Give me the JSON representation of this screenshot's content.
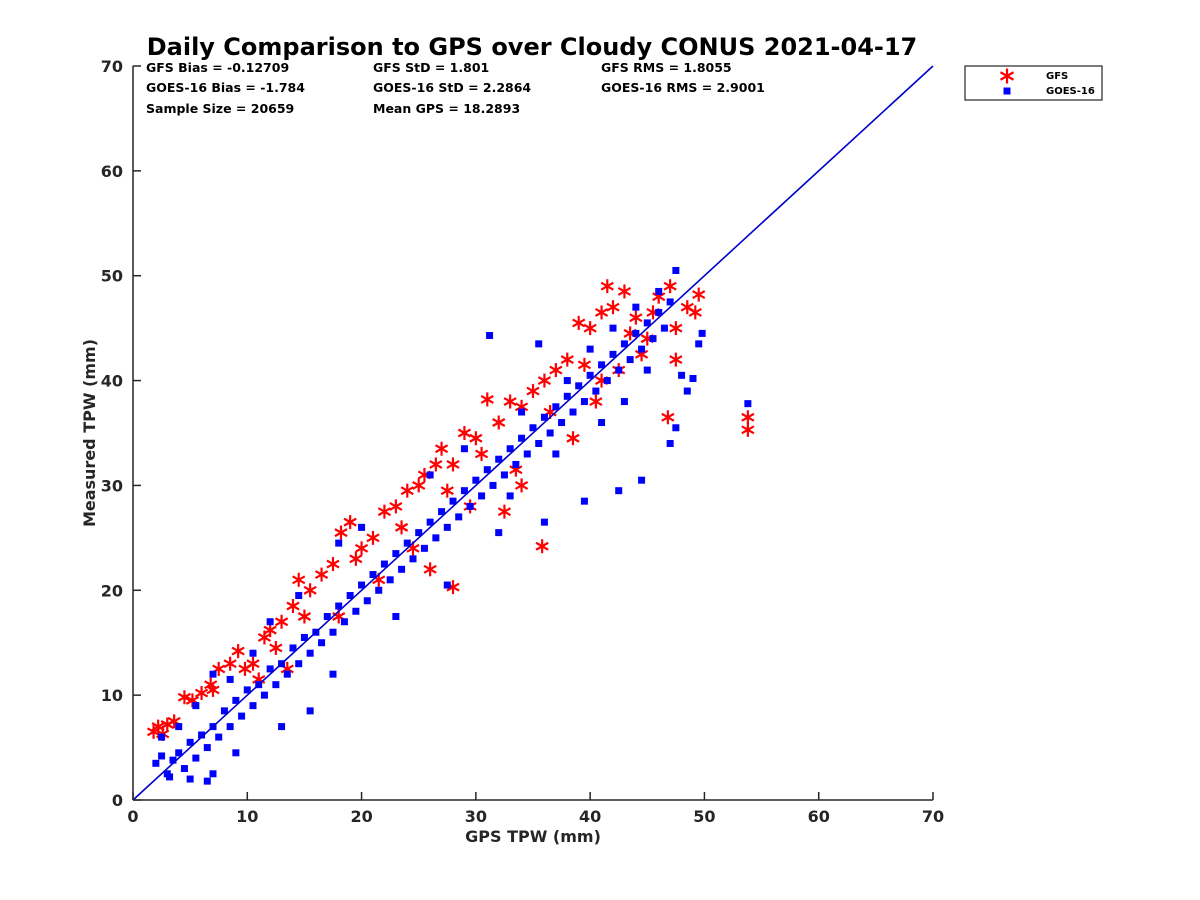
{
  "chart_data": {
    "type": "scatter",
    "title": "Daily Comparison to GPS over Cloudy CONUS 2021-04-17",
    "xlabel": "GPS TPW (mm)",
    "ylabel": "Measured TPW (mm)",
    "xlim": [
      0,
      70
    ],
    "ylim": [
      0,
      70
    ],
    "xticks": [
      "0",
      "10",
      "20",
      "30",
      "40",
      "50",
      "60",
      "70"
    ],
    "yticks": [
      "0",
      "10",
      "20",
      "30",
      "40",
      "50",
      "60",
      "70"
    ],
    "grid": false,
    "legend_position": "outside-top-right",
    "stats": [
      [
        "GFS Bias = -0.12709",
        "GFS StD = 1.801",
        "GFS RMS = 1.8055"
      ],
      [
        "GOES-16 Bias = -1.784",
        "GOES-16 StD = 2.2864",
        "GOES-16 RMS = 2.9001"
      ],
      [
        "Sample Size = 20659",
        "Mean GPS = 18.2893",
        ""
      ]
    ],
    "reference_line": {
      "name": "1:1",
      "x": [
        0,
        70
      ],
      "y": [
        0,
        70
      ],
      "color": "#0000cc"
    },
    "series": [
      {
        "name": "GFS",
        "marker": "asterisk",
        "color": "#ff0000",
        "points": [
          [
            1.8,
            6.5
          ],
          [
            2.2,
            7.0
          ],
          [
            2.6,
            6.3
          ],
          [
            3.0,
            7.2
          ],
          [
            3.6,
            7.5
          ],
          [
            4.5,
            9.8
          ],
          [
            5.2,
            9.5
          ],
          [
            6.0,
            10.2
          ],
          [
            6.8,
            11.0
          ],
          [
            7.5,
            12.5
          ],
          [
            8.5,
            13.0
          ],
          [
            9.2,
            14.2
          ],
          [
            10.5,
            13.0
          ],
          [
            11.5,
            15.5
          ],
          [
            12.0,
            16.2
          ],
          [
            13.0,
            17.0
          ],
          [
            14.0,
            18.5
          ],
          [
            14.5,
            21.0
          ],
          [
            15.5,
            20.0
          ],
          [
            16.5,
            21.5
          ],
          [
            17.5,
            22.5
          ],
          [
            18.2,
            25.5
          ],
          [
            19.0,
            26.5
          ],
          [
            20.0,
            24.0
          ],
          [
            21.0,
            25.0
          ],
          [
            22.0,
            27.5
          ],
          [
            23.0,
            28.0
          ],
          [
            24.0,
            29.5
          ],
          [
            25.0,
            30.0
          ],
          [
            25.5,
            31.0
          ],
          [
            26.5,
            32.0
          ],
          [
            27.0,
            33.5
          ],
          [
            28.0,
            32.0
          ],
          [
            29.0,
            35.0
          ],
          [
            30.0,
            34.5
          ],
          [
            31.0,
            38.2
          ],
          [
            32.0,
            36.0
          ],
          [
            33.0,
            38.0
          ],
          [
            34.0,
            37.5
          ],
          [
            35.0,
            39.0
          ],
          [
            35.8,
            24.2
          ],
          [
            36.0,
            40.0
          ],
          [
            37.0,
            41.0
          ],
          [
            38.0,
            42.0
          ],
          [
            39.0,
            45.5
          ],
          [
            40.0,
            45.0
          ],
          [
            41.0,
            46.5
          ],
          [
            41.5,
            49.0
          ],
          [
            42.0,
            47.0
          ],
          [
            43.0,
            48.5
          ],
          [
            44.0,
            46.0
          ],
          [
            45.0,
            44.0
          ],
          [
            46.0,
            48.0
          ],
          [
            47.0,
            49.0
          ],
          [
            47.5,
            45.0
          ],
          [
            48.5,
            47.0
          ],
          [
            49.5,
            48.2
          ],
          [
            49.2,
            46.5
          ],
          [
            53.8,
            36.5
          ],
          [
            53.8,
            35.3
          ],
          [
            7.0,
            10.5
          ],
          [
            9.8,
            12.5
          ],
          [
            12.5,
            14.5
          ],
          [
            15.0,
            17.5
          ],
          [
            19.5,
            23.0
          ],
          [
            23.5,
            26.0
          ],
          [
            27.5,
            29.5
          ],
          [
            30.5,
            33.0
          ],
          [
            33.5,
            31.5
          ],
          [
            36.5,
            37.0
          ],
          [
            39.5,
            41.5
          ],
          [
            41.0,
            40.0
          ],
          [
            43.5,
            44.5
          ],
          [
            45.5,
            46.5
          ],
          [
            32.5,
            27.5
          ],
          [
            26.0,
            22.0
          ],
          [
            21.5,
            21.0
          ],
          [
            28.0,
            20.3
          ],
          [
            47.5,
            42.0
          ],
          [
            46.8,
            36.5
          ],
          [
            38.5,
            34.5
          ],
          [
            40.5,
            38.0
          ],
          [
            42.5,
            41.0
          ],
          [
            44.5,
            42.5
          ],
          [
            34.0,
            30.0
          ],
          [
            29.5,
            28.0
          ],
          [
            24.5,
            24.0
          ],
          [
            18.0,
            17.5
          ],
          [
            13.5,
            12.5
          ],
          [
            11.0,
            11.5
          ]
        ]
      },
      {
        "name": "GOES-16",
        "marker": "square",
        "color": "#0000ff",
        "points": [
          [
            2.0,
            3.5
          ],
          [
            2.5,
            4.2
          ],
          [
            3.0,
            2.5
          ],
          [
            3.5,
            3.8
          ],
          [
            4.0,
            4.5
          ],
          [
            4.5,
            3.0
          ],
          [
            5.0,
            5.5
          ],
          [
            5.5,
            4.0
          ],
          [
            6.0,
            6.2
          ],
          [
            6.5,
            5.0
          ],
          [
            7.0,
            7.0
          ],
          [
            7.5,
            6.0
          ],
          [
            8.0,
            8.5
          ],
          [
            8.5,
            7.0
          ],
          [
            9.0,
            9.5
          ],
          [
            9.5,
            8.0
          ],
          [
            10.0,
            10.5
          ],
          [
            10.5,
            9.0
          ],
          [
            11.0,
            11.0
          ],
          [
            11.5,
            10.0
          ],
          [
            12.0,
            12.5
          ],
          [
            12.5,
            11.0
          ],
          [
            13.0,
            13.0
          ],
          [
            13.5,
            12.0
          ],
          [
            14.0,
            14.5
          ],
          [
            14.5,
            13.0
          ],
          [
            15.0,
            15.5
          ],
          [
            15.5,
            14.0
          ],
          [
            16.0,
            16.0
          ],
          [
            16.5,
            15.0
          ],
          [
            17.0,
            17.5
          ],
          [
            17.5,
            16.0
          ],
          [
            18.0,
            18.5
          ],
          [
            18.5,
            17.0
          ],
          [
            19.0,
            19.5
          ],
          [
            19.5,
            18.0
          ],
          [
            20.0,
            20.5
          ],
          [
            20.5,
            19.0
          ],
          [
            21.0,
            21.5
          ],
          [
            21.5,
            20.0
          ],
          [
            22.0,
            22.5
          ],
          [
            22.5,
            21.0
          ],
          [
            23.0,
            23.5
          ],
          [
            23.5,
            22.0
          ],
          [
            24.0,
            24.5
          ],
          [
            24.5,
            23.0
          ],
          [
            25.0,
            25.5
          ],
          [
            25.5,
            24.0
          ],
          [
            26.0,
            26.5
          ],
          [
            26.5,
            25.0
          ],
          [
            27.0,
            27.5
          ],
          [
            27.5,
            26.0
          ],
          [
            28.0,
            28.5
          ],
          [
            28.5,
            27.0
          ],
          [
            29.0,
            29.5
          ],
          [
            29.5,
            28.0
          ],
          [
            30.0,
            30.5
          ],
          [
            30.5,
            29.0
          ],
          [
            31.0,
            31.5
          ],
          [
            31.5,
            30.0
          ],
          [
            32.0,
            32.5
          ],
          [
            32.5,
            31.0
          ],
          [
            33.0,
            33.5
          ],
          [
            33.5,
            32.0
          ],
          [
            34.0,
            34.5
          ],
          [
            34.5,
            33.0
          ],
          [
            35.0,
            35.5
          ],
          [
            35.5,
            34.0
          ],
          [
            36.0,
            36.5
          ],
          [
            36.5,
            35.0
          ],
          [
            37.0,
            37.5
          ],
          [
            37.5,
            36.0
          ],
          [
            38.0,
            38.5
          ],
          [
            38.5,
            37.0
          ],
          [
            39.0,
            39.5
          ],
          [
            39.5,
            38.0
          ],
          [
            40.0,
            40.5
          ],
          [
            40.5,
            39.0
          ],
          [
            41.0,
            41.5
          ],
          [
            41.5,
            40.0
          ],
          [
            42.0,
            42.5
          ],
          [
            42.5,
            41.0
          ],
          [
            43.0,
            43.5
          ],
          [
            43.5,
            42.0
          ],
          [
            44.0,
            44.5
          ],
          [
            44.5,
            43.0
          ],
          [
            45.0,
            45.5
          ],
          [
            45.5,
            44.0
          ],
          [
            46.0,
            46.5
          ],
          [
            46.5,
            45.0
          ],
          [
            47.0,
            47.5
          ],
          [
            47.5,
            50.5
          ],
          [
            48.0,
            40.5
          ],
          [
            48.5,
            39.0
          ],
          [
            49.0,
            40.2
          ],
          [
            49.5,
            43.5
          ],
          [
            49.8,
            44.5
          ],
          [
            31.2,
            44.3
          ],
          [
            35.5,
            43.5
          ],
          [
            53.8,
            37.8
          ],
          [
            36.0,
            26.5
          ],
          [
            32.0,
            25.5
          ],
          [
            47.0,
            34.0
          ],
          [
            47.5,
            35.5
          ],
          [
            44.5,
            30.5
          ],
          [
            42.5,
            29.5
          ],
          [
            39.5,
            28.5
          ],
          [
            27.5,
            20.5
          ],
          [
            23.0,
            17.5
          ],
          [
            17.5,
            12.0
          ],
          [
            15.5,
            8.5
          ],
          [
            13.0,
            7.0
          ],
          [
            9.0,
            4.5
          ],
          [
            7.0,
            2.5
          ],
          [
            6.5,
            1.8
          ],
          [
            5.0,
            2.0
          ],
          [
            3.2,
            2.2
          ],
          [
            12.0,
            17.0
          ],
          [
            14.5,
            19.5
          ],
          [
            10.5,
            14.0
          ],
          [
            7.0,
            12.0
          ],
          [
            8.5,
            11.5
          ],
          [
            5.5,
            9.0
          ],
          [
            4.0,
            7.0
          ],
          [
            2.5,
            6.0
          ],
          [
            20.0,
            26.0
          ],
          [
            18.0,
            24.5
          ],
          [
            26.0,
            31.0
          ],
          [
            29.0,
            33.5
          ],
          [
            34.0,
            37.0
          ],
          [
            38.0,
            40.0
          ],
          [
            40.0,
            43.0
          ],
          [
            42.0,
            45.0
          ],
          [
            44.0,
            47.0
          ],
          [
            46.0,
            48.5
          ],
          [
            45.0,
            41.0
          ],
          [
            43.0,
            38.0
          ],
          [
            41.0,
            36.0
          ],
          [
            37.0,
            33.0
          ],
          [
            33.0,
            29.0
          ]
        ]
      }
    ]
  }
}
